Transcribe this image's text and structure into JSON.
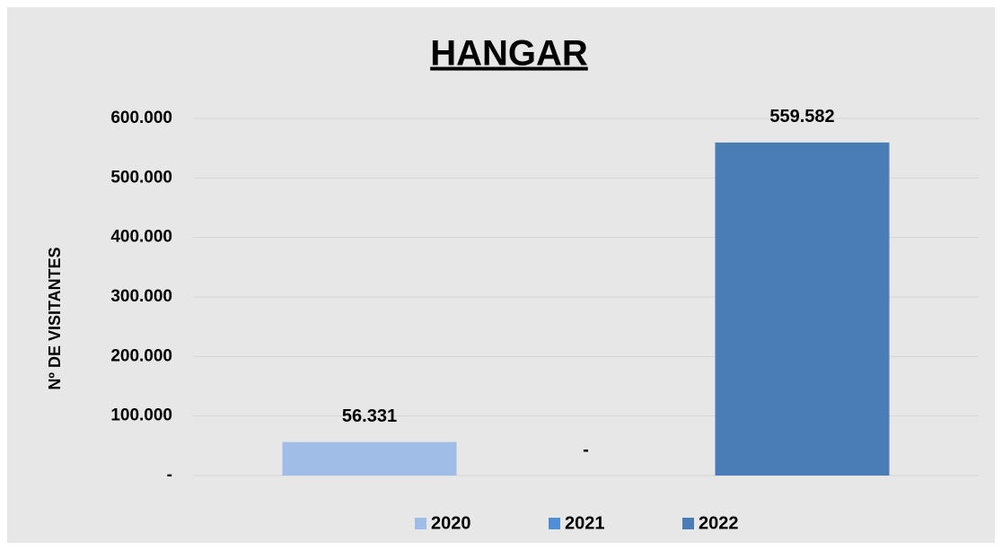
{
  "chart_data": {
    "type": "bar",
    "title": "HANGAR",
    "ylabel": "Nº DE VISITANTES",
    "categories": [
      null
    ],
    "series": [
      {
        "name": "2020",
        "color": "#9fbde6",
        "values": [
          56331
        ],
        "value_labels": [
          "56.331"
        ]
      },
      {
        "name": "2021",
        "color": "#4f8fd6",
        "values": [
          0
        ],
        "value_labels": [
          "-"
        ]
      },
      {
        "name": "2022",
        "color": "#4a7db5",
        "values": [
          559582
        ],
        "value_labels": [
          "559.582"
        ]
      }
    ],
    "ylim": [
      0,
      600000
    ],
    "yticks": [
      {
        "value": 0,
        "label": "-"
      },
      {
        "value": 100000,
        "label": "100.000"
      },
      {
        "value": 200000,
        "label": "200.000"
      },
      {
        "value": 300000,
        "label": "300.000"
      },
      {
        "value": 400000,
        "label": "400.000"
      },
      {
        "value": 500000,
        "label": "500.000"
      },
      {
        "value": 600000,
        "label": "600.000"
      }
    ],
    "grid": true,
    "legend": "bottom"
  }
}
